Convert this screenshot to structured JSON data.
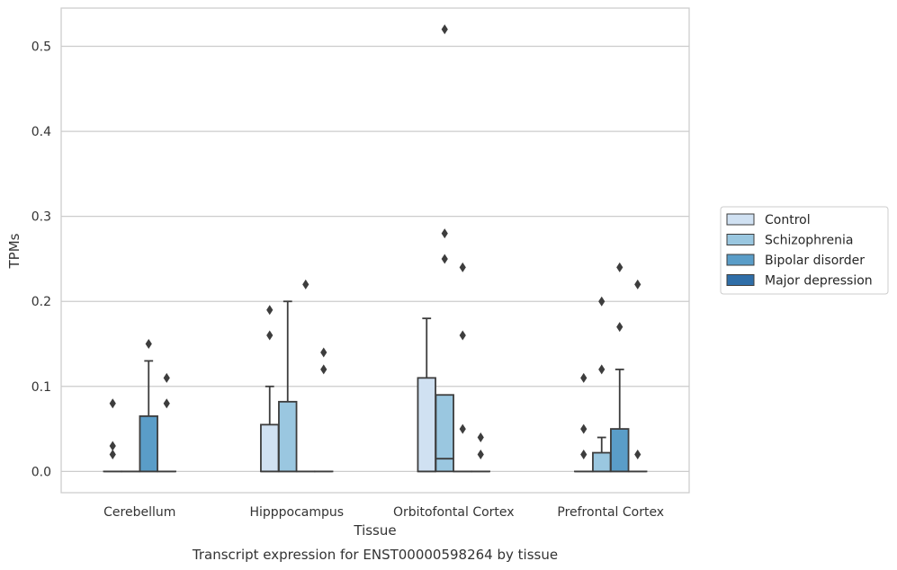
{
  "chart_data": {
    "type": "box",
    "xlabel": "Tissue",
    "ylabel": "TPMs",
    "caption": "Transcript expression for ENST00000598264 by tissue",
    "ylim": [
      -0.025,
      0.545
    ],
    "yticks": [
      "0.0",
      "0.1",
      "0.2",
      "0.3",
      "0.4",
      "0.5"
    ],
    "ytick_values": [
      0.0,
      0.1,
      0.2,
      0.3,
      0.4,
      0.5
    ],
    "grid": true,
    "legend_placement": "right",
    "categories": [
      "Cerebellum",
      "Hipppocampus",
      "Orbitofontal Cortex",
      "Prefrontal Cortex"
    ],
    "series": [
      {
        "name": "Control",
        "color": "#d0e1f2",
        "boxes": [
          {
            "q1": 0,
            "median": 0,
            "q3": 0,
            "whisker_low": 0,
            "whisker_high": 0,
            "outliers": [
              0.08,
              0.03,
              0.02
            ]
          },
          {
            "q1": 0,
            "median": 0,
            "q3": 0.055,
            "whisker_low": 0,
            "whisker_high": 0.1,
            "outliers": [
              0.19,
              0.16
            ]
          },
          {
            "q1": 0,
            "median": 0,
            "q3": 0.11,
            "whisker_low": 0,
            "whisker_high": 0.18,
            "outliers": []
          },
          {
            "q1": 0,
            "median": 0,
            "q3": 0,
            "whisker_low": 0,
            "whisker_high": 0,
            "outliers": [
              0.11,
              0.05,
              0.02
            ]
          }
        ]
      },
      {
        "name": "Schizophrenia",
        "color": "#9ac7e0",
        "boxes": [
          {
            "q1": 0,
            "median": 0,
            "q3": 0,
            "whisker_low": 0,
            "whisker_high": 0,
            "outliers": []
          },
          {
            "q1": 0,
            "median": 0,
            "q3": 0.082,
            "whisker_low": 0,
            "whisker_high": 0.2,
            "outliers": []
          },
          {
            "q1": 0,
            "median": 0.015,
            "q3": 0.09,
            "whisker_low": 0,
            "whisker_high": 0.09,
            "outliers": [
              0.52,
              0.28,
              0.25
            ]
          },
          {
            "q1": 0,
            "median": 0,
            "q3": 0.022,
            "whisker_low": 0,
            "whisker_high": 0.04,
            "outliers": [
              0.2,
              0.12
            ]
          }
        ]
      },
      {
        "name": "Bipolar disorder",
        "color": "#5a9dc8",
        "boxes": [
          {
            "q1": 0,
            "median": 0,
            "q3": 0.065,
            "whisker_low": 0,
            "whisker_high": 0.13,
            "outliers": [
              0.15
            ]
          },
          {
            "q1": 0,
            "median": 0,
            "q3": 0,
            "whisker_low": 0,
            "whisker_high": 0,
            "outliers": [
              0.22
            ]
          },
          {
            "q1": 0,
            "median": 0,
            "q3": 0,
            "whisker_low": 0,
            "whisker_high": 0,
            "outliers": [
              0.24,
              0.16,
              0.05
            ]
          },
          {
            "q1": 0,
            "median": 0,
            "q3": 0.05,
            "whisker_low": 0,
            "whisker_high": 0.12,
            "outliers": [
              0.24,
              0.17
            ]
          }
        ]
      },
      {
        "name": "Major depression",
        "color": "#2f6ea8",
        "boxes": [
          {
            "q1": 0,
            "median": 0,
            "q3": 0,
            "whisker_low": 0,
            "whisker_high": 0,
            "outliers": [
              0.11,
              0.08
            ]
          },
          {
            "q1": 0,
            "median": 0,
            "q3": 0,
            "whisker_low": 0,
            "whisker_high": 0,
            "outliers": [
              0.14,
              0.12
            ]
          },
          {
            "q1": 0,
            "median": 0,
            "q3": 0,
            "whisker_low": 0,
            "whisker_high": 0,
            "outliers": [
              0.04,
              0.02
            ]
          },
          {
            "q1": 0,
            "median": 0,
            "q3": 0,
            "whisker_low": 0,
            "whisker_high": 0,
            "outliers": [
              0.22,
              0.02
            ]
          }
        ]
      }
    ]
  }
}
